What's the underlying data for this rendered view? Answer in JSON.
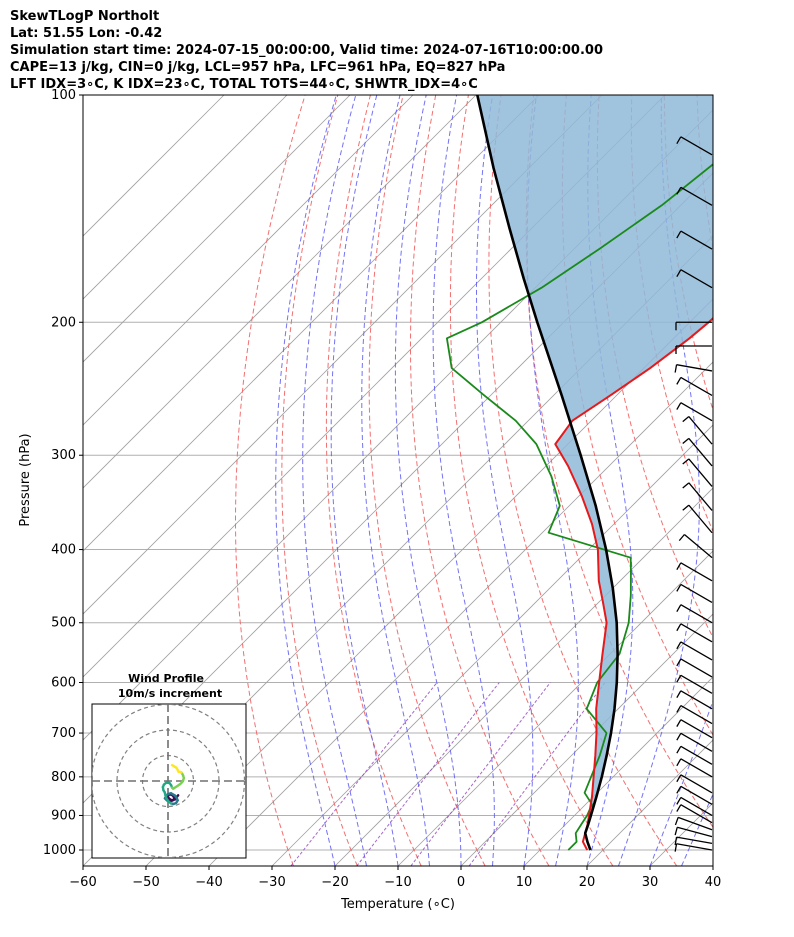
{
  "header": {
    "title": "SkewTLogP Northolt",
    "location": "Lat: 51.55   Lon: -0.42",
    "times": "Simulation start time: 2024-07-15_00:00:00, Valid time: 2024-07-16T10:00:00.00",
    "indices1": "CAPE=13 j/kg, CIN=0 j/kg, LCL=957 hPa, LFC=961 hPa, EQ=827 hPa",
    "indices2": "LFT IDX=3∘C, K IDX=23∘C, TOTAL TOTS=44∘C, SHWTR_IDX=4∘C"
  },
  "chart_data": [
    {
      "type": "line",
      "subtype": "skew-T log-P",
      "xlabel": "Temperature (∘C)",
      "ylabel": "Pressure (hPa)",
      "xlim": [
        -60,
        40
      ],
      "ylim": [
        1050,
        100
      ],
      "y_scale": "log",
      "x_ticks": [
        "−60",
        "−50",
        "−40",
        "−30",
        "−20",
        "−10",
        "0",
        "10",
        "20",
        "30",
        "40"
      ],
      "x_tick_values": [
        -60,
        -50,
        -40,
        -30,
        -20,
        -10,
        0,
        10,
        20,
        30,
        40
      ],
      "y_ticks": [
        100,
        200,
        300,
        400,
        500,
        600,
        700,
        800,
        900,
        1000
      ],
      "grid": true,
      "colors": {
        "temperature": "#e41a1c",
        "dewpoint": "#1a8a1a",
        "parcel": "#000000",
        "cape": "#8fb8d8",
        "isotherm": "#a0a0a0",
        "dry_adiabat": "#f06060",
        "moist_adiabat": "#5a5af0",
        "mixing_ratio": "#9040c0",
        "wind_barb": "#000000"
      },
      "series": [
        {
          "key": "temperature",
          "p": [
            1000,
            975,
            950,
            925,
            900,
            850,
            800,
            750,
            700,
            650,
            600,
            550,
            500,
            470,
            440,
            400,
            370,
            340,
            310,
            290,
            270,
            250,
            230,
            210,
            200,
            180,
            160,
            140,
            125,
            110,
            100
          ],
          "t": [
            17.5,
            15.5,
            14.5,
            13.5,
            12.3,
            9.8,
            6.9,
            3.8,
            0.4,
            -3.5,
            -7.2,
            -11.2,
            -15.5,
            -19.3,
            -23.4,
            -28.5,
            -33.5,
            -39.5,
            -46.5,
            -52.0,
            -53.0,
            -51.0,
            -49.0,
            -47.5,
            -47.0,
            -46.5,
            -46.0,
            -47.0,
            -48.0,
            -49.0,
            -49.0
          ]
        },
        {
          "key": "dewpoint",
          "p": [
            1000,
            975,
            950,
            925,
            900,
            870,
            840,
            800,
            750,
            700,
            650,
            600,
            550,
            500,
            460,
            430,
            410,
            380,
            350,
            320,
            290,
            270,
            250,
            230,
            210,
            200,
            180,
            160,
            140,
            120,
            100
          ],
          "t": [
            14.5,
            14.5,
            13.0,
            12.5,
            12.0,
            11.0,
            8.0,
            6.5,
            4.5,
            2.0,
            -5.0,
            -7.5,
            -8.5,
            -12.0,
            -16.0,
            -19.5,
            -22.0,
            -39.0,
            -41.5,
            -47.5,
            -55.0,
            -62.0,
            -71.0,
            -80.5,
            -86.0,
            -83.0,
            -79.0,
            -76.0,
            -73.0,
            -71.0,
            -69.0
          ]
        },
        {
          "key": "parcel",
          "p": [
            1000,
            975,
            950,
            925,
            900,
            850,
            800,
            750,
            700,
            650,
            600,
            550,
            500,
            450,
            400,
            350,
            300,
            250,
            200,
            175,
            150,
            125,
            100
          ],
          "t": [
            18.0,
            16.2,
            14.5,
            13.6,
            12.6,
            10.5,
            8.2,
            5.6,
            2.7,
            -0.6,
            -4.4,
            -8.8,
            -13.9,
            -20.0,
            -27.2,
            -35.8,
            -46.2,
            -58.7,
            -74.2,
            -83.3,
            -93.6,
            -105.6,
            -119.8
          ]
        }
      ],
      "wind_barbs": {
        "description": "wind barbs at right edge",
        "p": [
          1000,
          980,
          960,
          940,
          920,
          900,
          870,
          840,
          800,
          770,
          740,
          710,
          680,
          650,
          620,
          590,
          560,
          530,
          500,
          470,
          440,
          410,
          380,
          355,
          330,
          310,
          290,
          270,
          250,
          232,
          215,
          200,
          180,
          160,
          140,
          120
        ],
        "speed_kt": [
          10,
          10,
          10,
          10,
          10,
          10,
          10,
          10,
          10,
          10,
          10,
          10,
          10,
          10,
          10,
          10,
          10,
          10,
          10,
          10,
          10,
          10,
          10,
          10,
          10,
          10,
          10,
          10,
          10,
          10,
          10,
          10,
          10,
          10,
          10,
          10
        ],
        "dir_deg": [
          280,
          280,
          285,
          290,
          300,
          300,
          300,
          300,
          300,
          300,
          300,
          300,
          300,
          300,
          300,
          300,
          300,
          300,
          300,
          300,
          300,
          310,
          320,
          320,
          320,
          320,
          320,
          300,
          300,
          280,
          270,
          270,
          300,
          300,
          300,
          300
        ]
      },
      "inset": {
        "title_line1": "Wind Profile",
        "title_line2": "10m/s increment",
        "rings_ms": [
          10,
          20,
          30
        ],
        "hodograph_u": [
          4.0,
          3.5,
          2.8,
          1.6,
          0.5,
          -0.2,
          0.6,
          1.8,
          2.6,
          1.8,
          0.6,
          -0.4,
          -1.2,
          -0.6,
          0.2,
          1.2,
          2.6,
          3.4,
          3.8,
          3.2,
          2.2,
          1.2,
          0.2,
          -0.6,
          -1.0,
          -1.3,
          -1.8,
          -2.0,
          -1.6,
          -0.6,
          0.6,
          1.2,
          1.6,
          2.0,
          2.4,
          3.6,
          4.8,
          5.6,
          6.0,
          6.2,
          6.0,
          5.6,
          5.2,
          4.6,
          4.2,
          4.0,
          3.8,
          3.4,
          3.0,
          2.6,
          2.4,
          2.0,
          1.6
        ],
        "hodograph_v": [
          -5.6,
          -6.2,
          -7.2,
          -7.6,
          -7.0,
          -6.0,
          -5.2,
          -5.6,
          -6.8,
          -7.6,
          -8.0,
          -7.6,
          -6.8,
          -5.6,
          -5.0,
          -4.8,
          -5.6,
          -6.6,
          -7.6,
          -8.6,
          -9.0,
          -8.8,
          -8.0,
          -6.8,
          -5.6,
          -4.4,
          -3.6,
          -2.4,
          -1.4,
          -0.6,
          -0.8,
          -1.6,
          -2.6,
          -3.0,
          -2.8,
          -2.0,
          -1.2,
          -0.4,
          0.4,
          1.2,
          2.0,
          2.8,
          3.4,
          3.6,
          3.6,
          3.8,
          4.4,
          5.0,
          5.4,
          5.6,
          5.8,
          6.0,
          6.2
        ],
        "hodograph_cmap": [
          "#3b0f4f",
          "#2a788e",
          "#22a884",
          "#7ad151",
          "#fde725"
        ]
      }
    }
  ]
}
